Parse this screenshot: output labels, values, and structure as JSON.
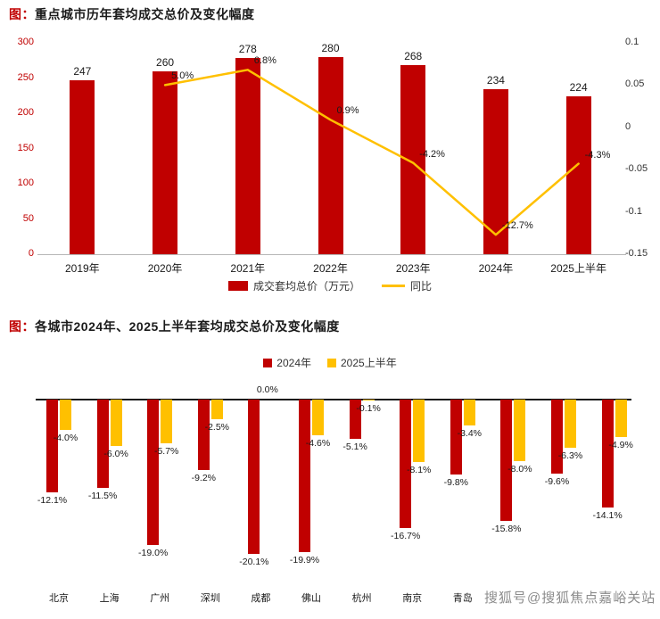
{
  "watermark": "搜狐号@搜狐焦点嘉峪关站",
  "colors": {
    "bar_red": "#c00000",
    "line_yellow": "#ffc000",
    "axis_red": "#c00000",
    "text_dark": "#1a1a1a",
    "watermark_gray": "#8c8c8c"
  },
  "chart1": {
    "title_prefix": "图：",
    "title": "重点城市历年套均成交总价及变化幅度"
  },
  "chart2": {
    "title_prefix": "图：",
    "title": "各城市2024年、2025上半年套均成交总价及变化幅度"
  },
  "chart_data": [
    {
      "type": "bar",
      "subtype": "bar-with-line-dual-axis",
      "title": "图：重点城市历年套均成交总价及变化幅度",
      "categories": [
        "2019年",
        "2020年",
        "2021年",
        "2022年",
        "2023年",
        "2024年",
        "2025上半年"
      ],
      "series": [
        {
          "name": "成交套均总价（万元）",
          "kind": "bar",
          "axis": "left",
          "color": "#c00000",
          "values": [
            247,
            260,
            278,
            280,
            268,
            234,
            224
          ]
        },
        {
          "name": "同比",
          "kind": "line",
          "axis": "right",
          "color": "#ffc000",
          "values": [
            null,
            0.05,
            0.068,
            0.009,
            -0.042,
            -0.127,
            -0.043
          ],
          "point_labels": [
            "",
            "5.0%",
            "6.8%",
            "0.9%",
            "-4.2%",
            "-12.7%",
            "-4.3%"
          ]
        }
      ],
      "left_axis": {
        "min": 0,
        "max": 300,
        "ticks": [
          "300",
          "250",
          "200",
          "150",
          "100",
          "50",
          "0"
        ]
      },
      "right_axis": {
        "min": -0.15,
        "max": 0.1,
        "ticks": [
          "0.1",
          "0.05",
          "0",
          "-0.05",
          "-0.1",
          "-0.15"
        ]
      },
      "legend_position": "bottom",
      "grid": false
    },
    {
      "type": "bar",
      "subtype": "grouped-negative-bars",
      "title": "图：各城市2024年、2025上半年套均成交总价及变化幅度",
      "unit": "%",
      "categories": [
        "北京",
        "上海",
        "广州",
        "深圳",
        "成都",
        "佛山",
        "杭州",
        "南京",
        "青岛",
        "",
        "",
        ""
      ],
      "series": [
        {
          "name": "2024年",
          "color": "#c00000",
          "values": [
            -12.1,
            -11.5,
            -19.0,
            -9.2,
            -20.1,
            -19.9,
            -5.1,
            -16.7,
            -9.8,
            -15.8,
            -9.6,
            -14.1
          ],
          "labels": [
            "-12.1%",
            "-11.5%",
            "-19.0%",
            "-9.2%",
            "-20.1%",
            "-19.9%",
            "-5.1%",
            "-16.7%",
            "-9.8%",
            "-15.8%",
            "-9.6%",
            "-14.1%"
          ]
        },
        {
          "name": "2025上半年",
          "color": "#ffc000",
          "values": [
            -4.0,
            -6.0,
            -5.7,
            -2.5,
            0.0,
            -4.6,
            -0.1,
            -8.1,
            -3.4,
            -8.0,
            -6.3,
            -4.9
          ],
          "labels": [
            "-4.0%",
            "-6.0%",
            "-5.7%",
            "-2.5%",
            "0.0%",
            "-4.6%",
            "-0.1%",
            "-8.1%",
            "-3.4%",
            "-8.0%",
            "-6.3%",
            "-4.9%"
          ]
        }
      ],
      "baseline": 0,
      "legend_position": "top",
      "grid": false,
      "note": "last three category labels obscured by watermark"
    }
  ]
}
